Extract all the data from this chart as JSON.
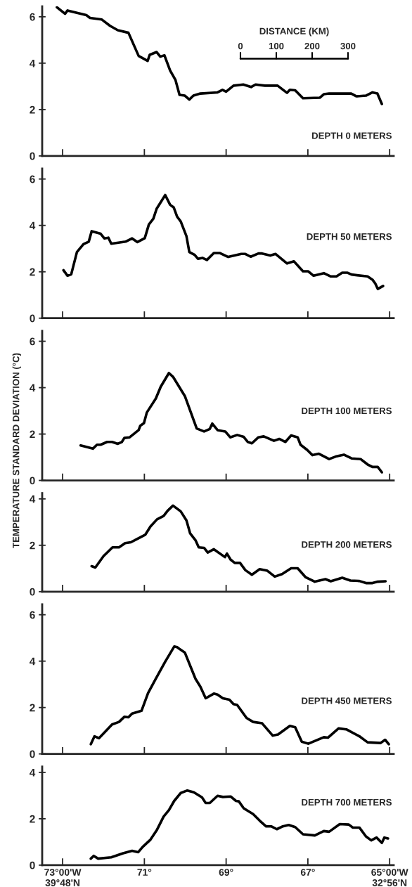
{
  "chart_data": [
    {
      "type": "line",
      "title": "DEPTH 0 METERS",
      "annotations": [
        "DISTANCE (KM)",
        "0",
        "100",
        "200",
        "300"
      ],
      "tick_labels": "y",
      "xlim": [
        73.5,
        64.9
      ],
      "ylim": [
        0,
        6.45
      ],
      "yticks": [
        0,
        2,
        4,
        6
      ],
      "xticks": [
        73,
        71,
        69,
        67,
        65
      ],
      "series": [
        {
          "color": "#000000",
          "x": [
            73.14,
            72.94,
            72.88,
            72.42,
            72.33,
            72.04,
            71.84,
            71.65,
            71.39,
            71.14,
            70.92,
            70.87,
            70.7,
            70.61,
            70.51,
            70.37,
            70.24,
            70.14,
            70.01,
            69.9,
            69.8,
            69.63,
            69.21,
            69.09,
            69.0,
            68.82,
            68.58,
            68.39,
            68.28,
            68.05,
            67.74,
            67.51,
            67.44,
            67.31,
            67.12,
            66.71,
            66.61,
            66.48,
            65.94,
            65.81,
            65.58,
            65.42,
            65.3,
            65.19
          ],
          "values": [
            6.41,
            6.13,
            6.27,
            6.07,
            5.95,
            5.88,
            5.61,
            5.42,
            5.31,
            4.31,
            4.1,
            4.36,
            4.48,
            4.28,
            4.34,
            3.68,
            3.28,
            2.63,
            2.6,
            2.43,
            2.6,
            2.69,
            2.74,
            2.85,
            2.77,
            3.03,
            3.08,
            2.97,
            3.08,
            3.03,
            3.03,
            2.72,
            2.85,
            2.83,
            2.49,
            2.51,
            2.66,
            2.69,
            2.69,
            2.57,
            2.6,
            2.74,
            2.69,
            2.24
          ]
        }
      ]
    },
    {
      "type": "line",
      "title": "DEPTH 50 METERS",
      "tick_labels": "y",
      "xlim": [
        73.5,
        64.9
      ],
      "ylim": [
        0,
        6.45
      ],
      "yticks": [
        0,
        2,
        4,
        6
      ],
      "xticks": [
        73,
        71,
        69,
        67,
        65
      ],
      "series": [
        {
          "color": "#000000",
          "x": [
            72.98,
            72.88,
            72.79,
            72.65,
            72.49,
            72.36,
            72.29,
            72.07,
            71.98,
            71.88,
            71.81,
            71.46,
            71.3,
            71.17,
            70.99,
            70.89,
            70.78,
            70.7,
            70.49,
            70.37,
            70.28,
            70.2,
            70.11,
            69.97,
            69.9,
            69.77,
            69.69,
            69.58,
            69.47,
            69.3,
            69.16,
            68.95,
            68.63,
            68.53,
            68.4,
            68.21,
            68.12,
            67.92,
            67.79,
            67.51,
            67.34,
            67.12,
            66.99,
            66.86,
            66.61,
            66.44,
            66.3,
            66.16,
            66.03,
            65.93,
            65.54,
            65.42,
            65.35,
            65.29,
            65.16
          ],
          "values": [
            2.07,
            1.83,
            1.89,
            2.85,
            3.19,
            3.3,
            3.75,
            3.64,
            3.44,
            3.47,
            3.21,
            3.3,
            3.44,
            3.28,
            3.45,
            4.04,
            4.29,
            4.72,
            5.31,
            4.89,
            4.77,
            4.38,
            4.17,
            3.53,
            2.85,
            2.73,
            2.56,
            2.6,
            2.51,
            2.81,
            2.81,
            2.64,
            2.77,
            2.77,
            2.65,
            2.79,
            2.79,
            2.7,
            2.77,
            2.36,
            2.45,
            2.02,
            2.02,
            1.83,
            1.94,
            1.8,
            1.8,
            1.96,
            1.96,
            1.88,
            1.8,
            1.66,
            1.49,
            1.26,
            1.39
          ]
        }
      ]
    },
    {
      "type": "line",
      "title": "DEPTH 100 METERS",
      "ylabel": "TEMPERATURE STANDARD DEVIATION (°C)",
      "tick_labels": "y",
      "xlim": [
        73.5,
        64.9
      ],
      "ylim": [
        0,
        6.45
      ],
      "yticks": [
        0,
        2,
        4,
        6
      ],
      "xticks": [
        73,
        71,
        69,
        67,
        65
      ],
      "series": [
        {
          "color": "#000000",
          "x": [
            72.56,
            72.39,
            72.26,
            72.16,
            72.07,
            71.91,
            71.79,
            71.65,
            71.55,
            71.49,
            71.36,
            71.14,
            71.1,
            71.01,
            70.94,
            70.72,
            70.6,
            70.4,
            70.3,
            70.01,
            69.72,
            69.54,
            69.4,
            69.34,
            69.21,
            69.02,
            68.9,
            68.73,
            68.57,
            68.47,
            68.37,
            68.21,
            68.08,
            67.83,
            67.7,
            67.55,
            67.41,
            67.25,
            67.18,
            67.02,
            66.89,
            66.73,
            66.48,
            66.32,
            66.12,
            65.93,
            65.71,
            65.54,
            65.42,
            65.29,
            65.19
          ],
          "values": [
            1.51,
            1.43,
            1.37,
            1.54,
            1.54,
            1.66,
            1.66,
            1.58,
            1.66,
            1.83,
            1.86,
            2.17,
            2.36,
            2.47,
            2.93,
            3.53,
            4.04,
            4.63,
            4.47,
            3.64,
            2.24,
            2.11,
            2.22,
            2.45,
            2.17,
            2.11,
            1.86,
            1.96,
            1.88,
            1.66,
            1.6,
            1.86,
            1.9,
            1.71,
            1.79,
            1.66,
            1.94,
            1.86,
            1.54,
            1.32,
            1.09,
            1.15,
            0.92,
            1.03,
            1.11,
            0.95,
            0.92,
            0.69,
            0.58,
            0.58,
            0.35
          ]
        }
      ]
    },
    {
      "type": "line",
      "title": "DEPTH 200 METERS",
      "tick_labels": "y",
      "xlim": [
        73.5,
        64.9
      ],
      "ylim": [
        0,
        4.25
      ],
      "yticks": [
        0,
        2,
        4
      ],
      "xticks": [
        73,
        71,
        69,
        67,
        65
      ],
      "series": [
        {
          "color": "#000000",
          "x": [
            72.29,
            72.2,
            72.0,
            71.78,
            71.62,
            71.47,
            71.33,
            71.17,
            70.98,
            70.85,
            70.69,
            70.53,
            70.43,
            70.3,
            70.11,
            69.97,
            69.88,
            69.75,
            69.67,
            69.54,
            69.45,
            69.3,
            69.03,
            68.98,
            68.89,
            68.79,
            68.66,
            68.53,
            68.37,
            68.18,
            67.99,
            67.81,
            67.63,
            67.41,
            67.25,
            67.06,
            66.83,
            66.57,
            66.44,
            66.16,
            65.96,
            65.74,
            65.58,
            65.42,
            65.29,
            65.1
          ],
          "values": [
            1.1,
            1.04,
            1.53,
            1.91,
            1.91,
            2.09,
            2.13,
            2.28,
            2.45,
            2.81,
            3.12,
            3.26,
            3.49,
            3.71,
            3.46,
            3.07,
            2.51,
            2.22,
            1.91,
            1.89,
            1.69,
            1.83,
            1.49,
            1.64,
            1.38,
            1.24,
            1.24,
            0.93,
            0.73,
            0.97,
            0.9,
            0.65,
            0.76,
            1.01,
            1.01,
            0.63,
            0.43,
            0.54,
            0.45,
            0.6,
            0.48,
            0.46,
            0.37,
            0.37,
            0.43,
            0.45
          ]
        }
      ]
    },
    {
      "type": "line",
      "title": "DEPTH 450 METERS",
      "tick_labels": "y",
      "xlim": [
        73.5,
        64.9
      ],
      "ylim": [
        0,
        6.45
      ],
      "yticks": [
        0,
        2,
        4,
        6
      ],
      "xticks": [
        73,
        71,
        69,
        67,
        65
      ],
      "series": [
        {
          "color": "#000000",
          "x": [
            72.31,
            72.22,
            72.11,
            71.79,
            71.62,
            71.49,
            71.39,
            71.3,
            71.07,
            70.91,
            70.72,
            70.49,
            70.27,
            70.2,
            70.01,
            69.75,
            69.63,
            69.5,
            69.3,
            69.21,
            69.08,
            68.92,
            68.82,
            68.73,
            68.5,
            68.34,
            68.12,
            67.86,
            67.73,
            67.44,
            67.31,
            67.15,
            66.99,
            66.61,
            66.51,
            66.25,
            66.06,
            65.74,
            65.54,
            65.22,
            65.11,
            65.02
          ],
          "values": [
            0.42,
            0.76,
            0.68,
            1.27,
            1.38,
            1.6,
            1.58,
            1.74,
            1.86,
            2.62,
            3.24,
            3.98,
            4.63,
            4.6,
            4.37,
            3.24,
            2.9,
            2.4,
            2.6,
            2.56,
            2.4,
            2.34,
            2.15,
            2.11,
            1.55,
            1.38,
            1.32,
            0.79,
            0.84,
            1.21,
            1.15,
            0.53,
            0.44,
            0.72,
            0.7,
            1.1,
            1.06,
            0.76,
            0.5,
            0.47,
            0.61,
            0.42
          ]
        }
      ]
    },
    {
      "type": "line",
      "title": "DEPTH 700 METERS",
      "xlim": [
        73.5,
        64.9
      ],
      "ylim": [
        0,
        4.25
      ],
      "yticks": [
        0,
        2,
        4
      ],
      "xticks": [
        {
          "value": 73,
          "label": "73°00'W\n39°48'N"
        },
        {
          "value": 71,
          "label": "71°"
        },
        {
          "value": 69,
          "label": "69°"
        },
        {
          "value": 67,
          "label": "67°"
        },
        {
          "value": 65,
          "label": "65°00'W\n32°56'N"
        }
      ],
      "series": [
        {
          "color": "#000000",
          "x": [
            72.31,
            72.24,
            72.13,
            71.81,
            71.52,
            71.3,
            71.15,
            71.04,
            70.85,
            70.69,
            70.53,
            70.4,
            70.27,
            70.11,
            69.95,
            69.79,
            69.59,
            69.5,
            69.4,
            69.21,
            69.08,
            68.89,
            68.76,
            68.69,
            68.57,
            68.34,
            68.18,
            68.02,
            67.89,
            67.76,
            67.63,
            67.47,
            67.31,
            67.12,
            66.83,
            66.61,
            66.48,
            66.22,
            66.0,
            65.9,
            65.74,
            65.58,
            65.45,
            65.32,
            65.19,
            65.13,
            65.04
          ],
          "values": [
            0.28,
            0.4,
            0.28,
            0.34,
            0.51,
            0.62,
            0.56,
            0.79,
            1.1,
            1.53,
            2.09,
            2.37,
            2.77,
            3.11,
            3.22,
            3.14,
            2.92,
            2.68,
            2.68,
            2.99,
            2.94,
            2.96,
            2.77,
            2.75,
            2.45,
            2.2,
            1.92,
            1.67,
            1.67,
            1.55,
            1.66,
            1.73,
            1.64,
            1.33,
            1.28,
            1.47,
            1.44,
            1.77,
            1.75,
            1.62,
            1.62,
            1.24,
            1.07,
            1.19,
            0.96,
            1.19,
            1.15
          ]
        }
      ]
    }
  ]
}
